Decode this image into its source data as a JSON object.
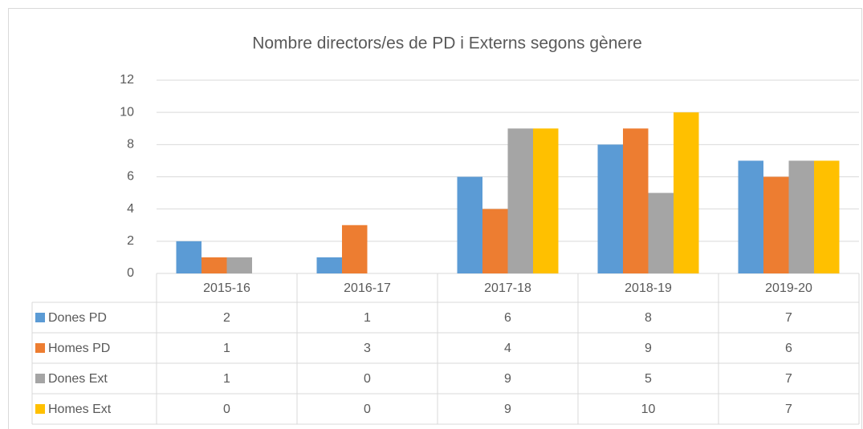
{
  "chart_data": {
    "type": "bar",
    "title": "Nombre directors/es de PD i Externs segons gènere",
    "categories": [
      "2015-16",
      "2016-17",
      "2017-18",
      "2018-19",
      "2019-20"
    ],
    "series": [
      {
        "name": "Dones PD",
        "color": "#5b9bd5",
        "values": [
          2,
          1,
          6,
          8,
          7
        ]
      },
      {
        "name": "Homes PD",
        "color": "#ed7d31",
        "values": [
          1,
          3,
          4,
          9,
          6
        ]
      },
      {
        "name": "Dones Ext",
        "color": "#a5a5a5",
        "values": [
          1,
          0,
          9,
          5,
          7
        ]
      },
      {
        "name": "Homes Ext",
        "color": "#ffc000",
        "values": [
          0,
          0,
          9,
          10,
          7
        ]
      }
    ],
    "ylim": [
      0,
      12
    ],
    "yticks": [
      0,
      2,
      4,
      6,
      8,
      10,
      12
    ],
    "grid": true,
    "data_table": true
  }
}
